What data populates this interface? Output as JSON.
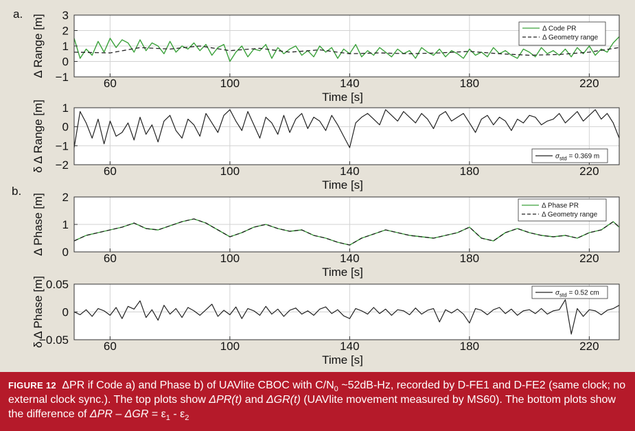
{
  "caption": {
    "label": "FIGURE 12",
    "part1": "ΔPR if Code a) and Phase b) of UAVlite CBOC with C/N",
    "sub0": "0",
    "part2": " ~52dB-Hz, recorded by D-FE1 and D-FE2 (same clock; no external clock sync.). The top plots show ",
    "pr_t": "ΔPR(t)",
    "and_word": " and ",
    "gr_t": "ΔGR(t)",
    "part3": " (UAVlite movement measured by MS60). The bottom plots show the difference of ",
    "dpr": "ΔPR",
    "minus": " – ",
    "dgr": "ΔGR",
    "eq": " = ε",
    "sub1": "1",
    "dash": " - ε",
    "sub2": "2"
  },
  "colors": {
    "green": "#3aa13a",
    "dark": "#222222",
    "background": "#e6e2d8",
    "caption_bg": "#b51a2a"
  },
  "chart_data": [
    {
      "type": "line",
      "panel_label": "a.",
      "xlabel": "Time [s]",
      "ylabel": "Δ Range [m]",
      "xlim": [
        48,
        230
      ],
      "ylim": [
        -1,
        3
      ],
      "xticks": [
        60,
        100,
        140,
        180,
        220
      ],
      "yticks": [
        -1,
        0,
        1,
        2,
        3
      ],
      "grid": true,
      "legend_position": "top-right",
      "series": [
        {
          "name": "Δ Code PR",
          "style": "solid-green",
          "x": [
            48,
            50,
            52,
            54,
            56,
            58,
            60,
            62,
            64,
            66,
            68,
            70,
            72,
            74,
            76,
            78,
            80,
            82,
            84,
            86,
            88,
            90,
            92,
            94,
            96,
            98,
            100,
            102,
            104,
            106,
            108,
            110,
            112,
            114,
            116,
            118,
            120,
            122,
            124,
            126,
            128,
            130,
            132,
            134,
            136,
            138,
            140,
            142,
            144,
            146,
            148,
            150,
            152,
            154,
            156,
            158,
            160,
            162,
            164,
            166,
            168,
            170,
            172,
            174,
            176,
            178,
            180,
            182,
            184,
            186,
            188,
            190,
            192,
            194,
            196,
            198,
            200,
            202,
            204,
            206,
            208,
            210,
            212,
            214,
            216,
            218,
            220,
            222,
            224,
            226,
            228,
            230
          ],
          "y": [
            1.5,
            0.2,
            0.8,
            0.4,
            1.3,
            0.6,
            1.5,
            0.9,
            1.4,
            1.2,
            0.6,
            1.4,
            0.7,
            1.2,
            1.0,
            0.5,
            1.3,
            0.6,
            1.0,
            0.8,
            1.2,
            0.7,
            1.1,
            0.4,
            0.9,
            1.1,
            0.0,
            0.6,
            1.0,
            0.3,
            0.8,
            0.7,
            1.1,
            0.2,
            0.9,
            0.5,
            0.8,
            1.0,
            0.4,
            0.7,
            0.3,
            1.0,
            0.6,
            0.9,
            0.2,
            0.8,
            0.5,
            1.1,
            0.3,
            0.7,
            0.4,
            0.9,
            0.6,
            0.3,
            0.8,
            0.5,
            0.7,
            0.2,
            0.9,
            0.6,
            0.4,
            0.8,
            0.3,
            0.7,
            0.5,
            0.2,
            0.8,
            0.4,
            0.6,
            0.3,
            0.9,
            0.5,
            0.7,
            0.4,
            0.2,
            0.8,
            0.6,
            0.3,
            0.9,
            0.5,
            0.7,
            0.4,
            0.8,
            0.3,
            0.9,
            0.5,
            1.0,
            0.4,
            0.8,
            0.6,
            1.2,
            1.6
          ]
        },
        {
          "name": "Δ Geometry range",
          "style": "dashed-dark",
          "x": [
            48,
            60,
            70,
            80,
            90,
            100,
            110,
            120,
            130,
            140,
            150,
            160,
            170,
            180,
            190,
            200,
            210,
            220,
            230
          ],
          "y": [
            0.6,
            0.55,
            0.9,
            0.8,
            1.0,
            0.7,
            0.85,
            0.6,
            0.75,
            0.5,
            0.55,
            0.5,
            0.55,
            0.65,
            0.5,
            0.4,
            0.45,
            0.6,
            0.9
          ]
        }
      ]
    },
    {
      "type": "line",
      "panel_label": "",
      "xlabel": "Time [s]",
      "ylabel": "δ Δ Range [m]",
      "xlim": [
        48,
        230
      ],
      "ylim": [
        -2,
        1
      ],
      "xticks": [
        60,
        100,
        140,
        180,
        220
      ],
      "yticks": [
        -2,
        -1,
        0,
        1
      ],
      "grid": true,
      "legend_position": "bottom-right",
      "series": [
        {
          "name": "σ_std = 0.369 m",
          "style": "solid-dark",
          "x": [
            48,
            50,
            52,
            54,
            56,
            58,
            60,
            62,
            64,
            66,
            68,
            70,
            72,
            74,
            76,
            78,
            80,
            82,
            84,
            86,
            88,
            90,
            92,
            94,
            96,
            98,
            100,
            102,
            104,
            106,
            108,
            110,
            112,
            114,
            116,
            118,
            120,
            122,
            124,
            126,
            128,
            130,
            132,
            134,
            136,
            138,
            140,
            142,
            144,
            146,
            148,
            150,
            152,
            154,
            156,
            158,
            160,
            162,
            164,
            166,
            168,
            170,
            172,
            174,
            176,
            178,
            180,
            182,
            184,
            186,
            188,
            190,
            192,
            194,
            196,
            198,
            200,
            202,
            204,
            206,
            208,
            210,
            212,
            214,
            216,
            218,
            220,
            222,
            224,
            226,
            228,
            230
          ],
          "y": [
            -1.1,
            0.8,
            0.2,
            -0.6,
            0.4,
            -0.9,
            0.3,
            -0.5,
            -0.3,
            0.2,
            -0.7,
            0.5,
            -0.4,
            0.1,
            -0.8,
            0.3,
            0.6,
            -0.2,
            -0.6,
            0.4,
            0.1,
            -0.5,
            0.7,
            0.2,
            -0.3,
            0.6,
            0.9,
            0.3,
            -0.2,
            0.8,
            0.1,
            -0.6,
            0.5,
            0.2,
            -0.4,
            0.6,
            -0.3,
            0.4,
            0.7,
            -0.1,
            0.5,
            0.3,
            -0.2,
            0.6,
            0.1,
            -0.5,
            -1.1,
            0.2,
            0.5,
            0.7,
            0.4,
            0.1,
            0.9,
            0.6,
            0.3,
            0.8,
            0.5,
            0.2,
            0.7,
            0.4,
            -0.1,
            0.6,
            0.8,
            0.3,
            0.5,
            0.7,
            0.2,
            -0.3,
            0.4,
            0.6,
            0.1,
            0.5,
            0.3,
            -0.2,
            0.4,
            0.2,
            0.6,
            0.5,
            0.1,
            0.3,
            0.4,
            0.7,
            0.2,
            0.5,
            0.8,
            0.3,
            0.6,
            0.9,
            0.4,
            0.7,
            0.2,
            -0.6
          ]
        }
      ]
    },
    {
      "type": "line",
      "panel_label": "b.",
      "xlabel": "Time [s]",
      "ylabel": "Δ Phase [m]",
      "xlim": [
        48,
        230
      ],
      "ylim": [
        0,
        2
      ],
      "xticks": [
        60,
        100,
        140,
        180,
        220
      ],
      "yticks": [
        0,
        1,
        2
      ],
      "grid": true,
      "legend_position": "top-right",
      "series": [
        {
          "name": "Δ Phase PR",
          "style": "solid-green",
          "x": [
            48,
            52,
            56,
            60,
            64,
            68,
            72,
            76,
            80,
            84,
            88,
            92,
            96,
            100,
            104,
            108,
            112,
            116,
            120,
            124,
            128,
            132,
            136,
            140,
            144,
            148,
            152,
            156,
            160,
            164,
            168,
            172,
            176,
            180,
            184,
            188,
            192,
            196,
            200,
            204,
            208,
            212,
            216,
            220,
            224,
            228,
            230
          ],
          "y": [
            0.4,
            0.6,
            0.7,
            0.8,
            0.9,
            1.05,
            0.85,
            0.8,
            0.95,
            1.1,
            1.2,
            1.05,
            0.8,
            0.55,
            0.7,
            0.9,
            1.0,
            0.85,
            0.75,
            0.8,
            0.6,
            0.5,
            0.35,
            0.25,
            0.5,
            0.65,
            0.8,
            0.7,
            0.6,
            0.55,
            0.5,
            0.6,
            0.7,
            0.9,
            0.5,
            0.4,
            0.7,
            0.85,
            0.7,
            0.6,
            0.55,
            0.6,
            0.5,
            0.7,
            0.8,
            1.1,
            0.9
          ]
        },
        {
          "name": "Δ Geometry range",
          "style": "dashed-dark",
          "x": [
            48,
            52,
            56,
            60,
            64,
            68,
            72,
            76,
            80,
            84,
            88,
            92,
            96,
            100,
            104,
            108,
            112,
            116,
            120,
            124,
            128,
            132,
            136,
            140,
            144,
            148,
            152,
            156,
            160,
            164,
            168,
            172,
            176,
            180,
            184,
            188,
            192,
            196,
            200,
            204,
            208,
            212,
            216,
            220,
            224,
            228,
            230
          ],
          "y": [
            0.4,
            0.6,
            0.7,
            0.8,
            0.9,
            1.05,
            0.85,
            0.8,
            0.95,
            1.1,
            1.2,
            1.05,
            0.8,
            0.55,
            0.7,
            0.9,
            1.0,
            0.85,
            0.75,
            0.8,
            0.6,
            0.5,
            0.35,
            0.25,
            0.5,
            0.65,
            0.8,
            0.7,
            0.6,
            0.55,
            0.5,
            0.6,
            0.7,
            0.9,
            0.5,
            0.4,
            0.7,
            0.85,
            0.7,
            0.6,
            0.55,
            0.6,
            0.5,
            0.7,
            0.8,
            1.1,
            0.9
          ]
        }
      ]
    },
    {
      "type": "line",
      "panel_label": "",
      "xlabel": "Time [s]",
      "ylabel": "δ Δ Phase [m]",
      "xlim": [
        48,
        230
      ],
      "ylim": [
        -0.05,
        0.05
      ],
      "xticks": [
        60,
        100,
        140,
        180,
        220
      ],
      "yticks": [
        -0.05,
        0,
        0.05
      ],
      "yticklabels": [
        "−0.05",
        "0",
        "0.05"
      ],
      "grid": true,
      "legend_position": "top-right",
      "series": [
        {
          "name": "σ_std = 0.52 cm",
          "style": "solid-dark",
          "x": [
            48,
            50,
            52,
            54,
            56,
            58,
            60,
            62,
            64,
            66,
            68,
            70,
            72,
            74,
            76,
            78,
            80,
            82,
            84,
            86,
            88,
            90,
            92,
            94,
            96,
            98,
            100,
            102,
            104,
            106,
            108,
            110,
            112,
            114,
            116,
            118,
            120,
            122,
            124,
            126,
            128,
            130,
            132,
            134,
            136,
            138,
            140,
            142,
            144,
            146,
            148,
            150,
            152,
            154,
            156,
            158,
            160,
            162,
            164,
            166,
            168,
            170,
            172,
            174,
            176,
            178,
            180,
            182,
            184,
            186,
            188,
            190,
            192,
            194,
            196,
            198,
            200,
            202,
            204,
            206,
            208,
            210,
            212,
            214,
            216,
            218,
            220,
            222,
            224,
            226,
            228,
            230
          ],
          "y": [
            0.0,
            -0.005,
            0.004,
            -0.008,
            0.006,
            0.002,
            -0.006,
            0.008,
            -0.012,
            0.01,
            0.005,
            0.02,
            -0.01,
            0.004,
            -0.015,
            0.012,
            -0.004,
            0.006,
            -0.01,
            0.008,
            0.002,
            -0.006,
            0.004,
            0.014,
            -0.008,
            0.003,
            -0.005,
            0.009,
            -0.012,
            0.006,
            0.002,
            -0.006,
            0.01,
            -0.004,
            0.005,
            -0.008,
            0.003,
            0.007,
            -0.004,
            0.002,
            -0.006,
            0.005,
            0.009,
            -0.003,
            0.004,
            -0.007,
            -0.012,
            0.006,
            0.002,
            -0.004,
            0.008,
            -0.003,
            0.005,
            -0.006,
            0.004,
            0.002,
            -0.005,
            0.007,
            -0.004,
            0.003,
            0.006,
            -0.018,
            0.004,
            -0.002,
            0.005,
            -0.004,
            -0.02,
            0.006,
            0.003,
            -0.005,
            0.004,
            0.008,
            -0.003,
            0.005,
            -0.006,
            0.002,
            0.004,
            -0.003,
            0.006,
            -0.004,
            0.002,
            0.004,
            0.022,
            -0.04,
            0.006,
            -0.008,
            0.004,
            0.002,
            -0.005,
            0.003,
            0.006,
            0.012
          ]
        }
      ]
    }
  ]
}
